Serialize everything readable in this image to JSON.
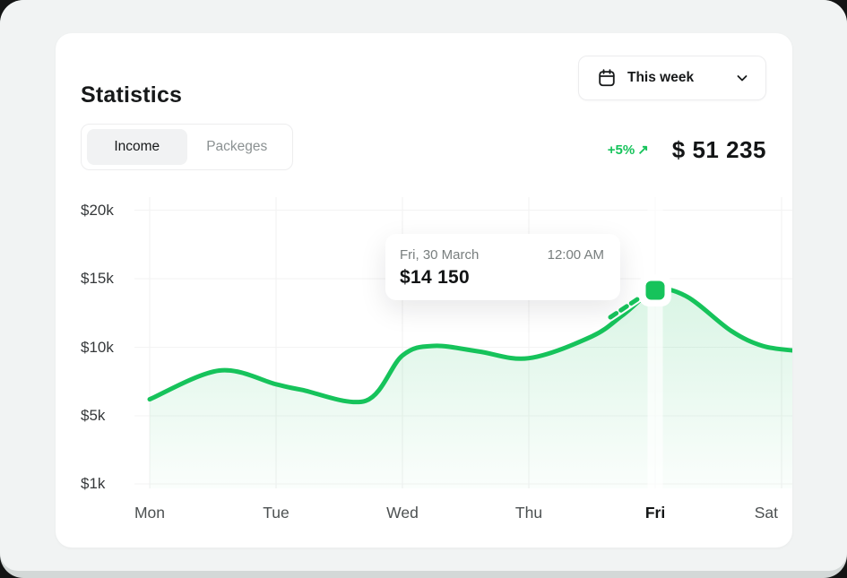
{
  "card": {
    "title": "Statistics",
    "period_selector": {
      "label": "This week"
    },
    "tabs": [
      {
        "label": "Income",
        "active": true
      },
      {
        "label": "Packeges",
        "active": false
      }
    ],
    "summary": {
      "change": "+5%",
      "arrow": "↗",
      "total": "$ 51 235"
    }
  },
  "tooltip": {
    "date": "Fri, 30 March",
    "time": "12:00 AM",
    "value": "$14 150"
  },
  "chart_data": {
    "type": "area",
    "title": "Weekly income",
    "categories": [
      "Mon",
      "Tue",
      "Wed",
      "Thu",
      "Fri",
      "Sat"
    ],
    "values": [
      6200,
      7300,
      9400,
      9200,
      14150,
      9800
    ],
    "unit": "USD",
    "y_ticks": [
      "$20k",
      "$15k",
      "$10k",
      "$5k",
      "$1k"
    ],
    "y_tick_values": [
      20000,
      15000,
      10000,
      5000,
      1000
    ],
    "grid": "on",
    "highlighted_category": "Fri",
    "highlight_point": {
      "category": "Fri",
      "value": 14150,
      "label": "$14 150",
      "date": "Fri, 30 March",
      "time": "12:00 AM"
    },
    "line_color": "#16c35b",
    "fill_color": "#24c366",
    "curve": [
      [
        0,
        6.2
      ],
      [
        0.55,
        8.3
      ],
      [
        1,
        7.3
      ],
      [
        1.2,
        6.9
      ],
      [
        1.71,
        6.1
      ],
      [
        2,
        9.4
      ],
      [
        2.25,
        10.1
      ],
      [
        2.6,
        9.7
      ],
      [
        3,
        9.2
      ],
      [
        3.5,
        10.8
      ],
      [
        3.75,
        12.4
      ],
      [
        4,
        14.15
      ],
      [
        4.25,
        13.7
      ],
      [
        4.6,
        11.2
      ],
      [
        4.85,
        10.1
      ],
      [
        5.1,
        9.75
      ]
    ]
  }
}
